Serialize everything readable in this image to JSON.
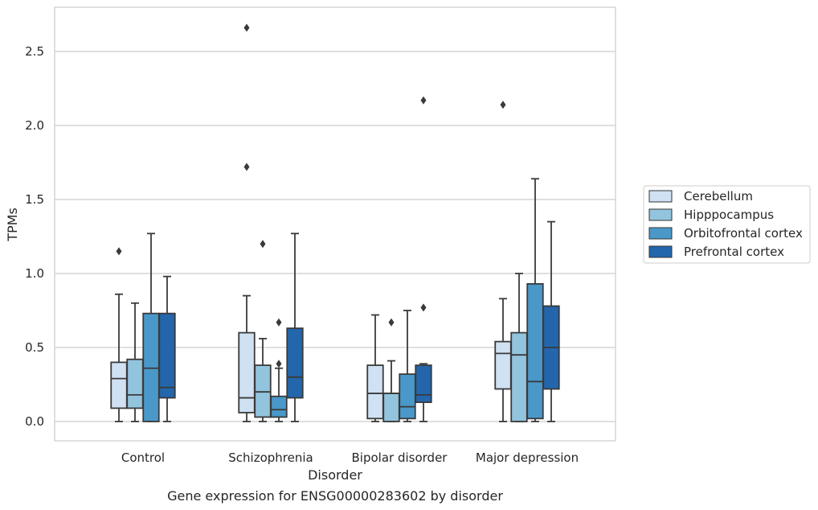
{
  "chart_data": {
    "type": "boxplot",
    "title": "Gene expression for ENSG00000283602 by disorder",
    "xlabel": "Disorder",
    "ylabel": "TPMs",
    "ylim": [
      -0.13,
      2.8
    ],
    "yticks": [
      0.0,
      0.5,
      1.0,
      1.5,
      2.0,
      2.5
    ],
    "ytick_labels": [
      "0.0",
      "0.5",
      "1.0",
      "1.5",
      "2.0",
      "2.5"
    ],
    "grid": "horizontal",
    "legend_position": "right",
    "categories": [
      "Control",
      "Schizophrenia",
      "Bipolar disorder",
      "Major depression"
    ],
    "series": [
      {
        "name": "Cerebellum",
        "color": "#cfe1f2",
        "boxes": [
          {
            "whisker_low": 0.0,
            "q1": 0.09,
            "median": 0.29,
            "q3": 0.4,
            "whisker_high": 0.86,
            "outliers": [
              1.15
            ]
          },
          {
            "whisker_low": 0.0,
            "q1": 0.06,
            "median": 0.16,
            "q3": 0.6,
            "whisker_high": 0.85,
            "outliers": [
              1.72,
              2.66
            ]
          },
          {
            "whisker_low": 0.0,
            "q1": 0.02,
            "median": 0.19,
            "q3": 0.38,
            "whisker_high": 0.72,
            "outliers": []
          },
          {
            "whisker_low": 0.0,
            "q1": 0.22,
            "median": 0.46,
            "q3": 0.54,
            "whisker_high": 0.83,
            "outliers": [
              2.14
            ]
          }
        ]
      },
      {
        "name": "Hipppocampus",
        "color": "#93c4de",
        "boxes": [
          {
            "whisker_low": 0.0,
            "q1": 0.09,
            "median": 0.18,
            "q3": 0.42,
            "whisker_high": 0.8,
            "outliers": []
          },
          {
            "whisker_low": 0.0,
            "q1": 0.03,
            "median": 0.2,
            "q3": 0.38,
            "whisker_high": 0.56,
            "outliers": [
              1.2
            ]
          },
          {
            "whisker_low": 0.0,
            "q1": 0.0,
            "median": 0.19,
            "q3": 0.19,
            "whisker_high": 0.41,
            "outliers": [
              0.67
            ]
          },
          {
            "whisker_low": 0.0,
            "q1": 0.0,
            "median": 0.45,
            "q3": 0.6,
            "whisker_high": 1.0,
            "outliers": []
          }
        ]
      },
      {
        "name": "Orbitofrontal cortex",
        "color": "#4a98c9",
        "boxes": [
          {
            "whisker_low": 0.0,
            "q1": 0.0,
            "median": 0.36,
            "q3": 0.73,
            "whisker_high": 1.27,
            "outliers": []
          },
          {
            "whisker_low": 0.0,
            "q1": 0.03,
            "median": 0.08,
            "q3": 0.17,
            "whisker_high": 0.36,
            "outliers": [
              0.39,
              0.67
            ]
          },
          {
            "whisker_low": 0.0,
            "q1": 0.02,
            "median": 0.1,
            "q3": 0.32,
            "whisker_high": 0.75,
            "outliers": []
          },
          {
            "whisker_low": 0.0,
            "q1": 0.02,
            "median": 0.27,
            "q3": 0.93,
            "whisker_high": 1.64,
            "outliers": []
          }
        ]
      },
      {
        "name": "Prefrontal cortex",
        "color": "#2366ac",
        "boxes": [
          {
            "whisker_low": 0.0,
            "q1": 0.16,
            "median": 0.23,
            "q3": 0.73,
            "whisker_high": 0.98,
            "outliers": []
          },
          {
            "whisker_low": 0.0,
            "q1": 0.16,
            "median": 0.3,
            "q3": 0.63,
            "whisker_high": 1.27,
            "outliers": []
          },
          {
            "whisker_low": 0.0,
            "q1": 0.13,
            "median": 0.18,
            "q3": 0.38,
            "whisker_high": 0.39,
            "outliers": [
              0.77,
              2.17
            ]
          },
          {
            "whisker_low": 0.0,
            "q1": 0.22,
            "median": 0.5,
            "q3": 0.78,
            "whisker_high": 1.35,
            "outliers": []
          }
        ]
      }
    ]
  }
}
